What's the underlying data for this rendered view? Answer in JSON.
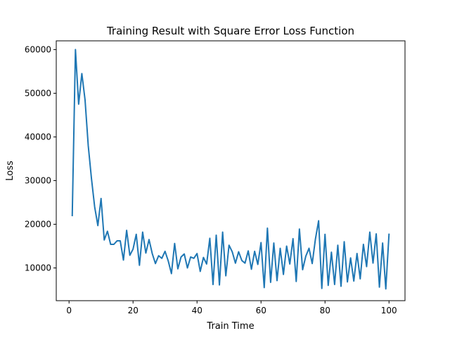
{
  "chart_data": {
    "type": "line",
    "title": "Training Result with Square Error Loss Function",
    "xlabel": "Train Time",
    "ylabel": "Loss",
    "xlim": [
      -4,
      105
    ],
    "ylim": [
      2500,
      62000
    ],
    "xticks": [
      0,
      20,
      40,
      60,
      80,
      100
    ],
    "yticks": [
      10000,
      20000,
      30000,
      40000,
      50000,
      60000
    ],
    "xtick_labels": [
      "0",
      "20",
      "40",
      "60",
      "80",
      "100"
    ],
    "ytick_labels": [
      "10000",
      "20000",
      "30000",
      "40000",
      "50000",
      "60000"
    ],
    "grid": false,
    "line_color": "#1f77b4",
    "x": [
      1,
      2,
      3,
      4,
      5,
      6,
      7,
      8,
      9,
      10,
      11,
      12,
      13,
      14,
      15,
      16,
      17,
      18,
      19,
      20,
      21,
      22,
      23,
      24,
      25,
      26,
      27,
      28,
      29,
      30,
      31,
      32,
      33,
      34,
      35,
      36,
      37,
      38,
      39,
      40,
      41,
      42,
      43,
      44,
      45,
      46,
      47,
      48,
      49,
      50,
      51,
      52,
      53,
      54,
      55,
      56,
      57,
      58,
      59,
      60,
      61,
      62,
      63,
      64,
      65,
      66,
      67,
      68,
      69,
      70,
      71,
      72,
      73,
      74,
      75,
      76,
      77,
      78,
      79,
      80,
      81,
      82,
      83,
      84,
      85,
      86,
      87,
      88,
      89,
      90,
      91,
      92,
      93,
      94,
      95,
      96,
      97,
      98,
      99,
      100
    ],
    "series": [
      {
        "values": [
          22000,
          60000,
          47500,
          54500,
          48500,
          38000,
          30500,
          24000,
          19700,
          25900,
          16400,
          18400,
          15400,
          15400,
          16200,
          16200,
          11800,
          18600,
          12900,
          14300,
          17700,
          10600,
          18200,
          13400,
          16500,
          13300,
          11000,
          12800,
          12200,
          13800,
          11600,
          8700,
          15600,
          9800,
          12500,
          13200,
          10000,
          12500,
          12200,
          13300,
          9200,
          12400,
          10900,
          16800,
          6200,
          17500,
          6100,
          18200,
          8200,
          15200,
          13700,
          11100,
          13700,
          11700,
          11100,
          13900,
          9700,
          13800,
          10800,
          15800,
          5500,
          19100,
          6700,
          15700,
          7100,
          14500,
          8500,
          15000,
          10900,
          16700,
          6900,
          18900,
          9600,
          12700,
          14500,
          11000,
          16600,
          20800,
          5300,
          17700,
          6000,
          13600,
          6200,
          15200,
          5800,
          16000,
          6800,
          12300,
          7000,
          13300,
          7500,
          15400,
          10300,
          18200,
          11100,
          17800,
          5600,
          15700,
          5200,
          17700
        ]
      }
    ]
  }
}
